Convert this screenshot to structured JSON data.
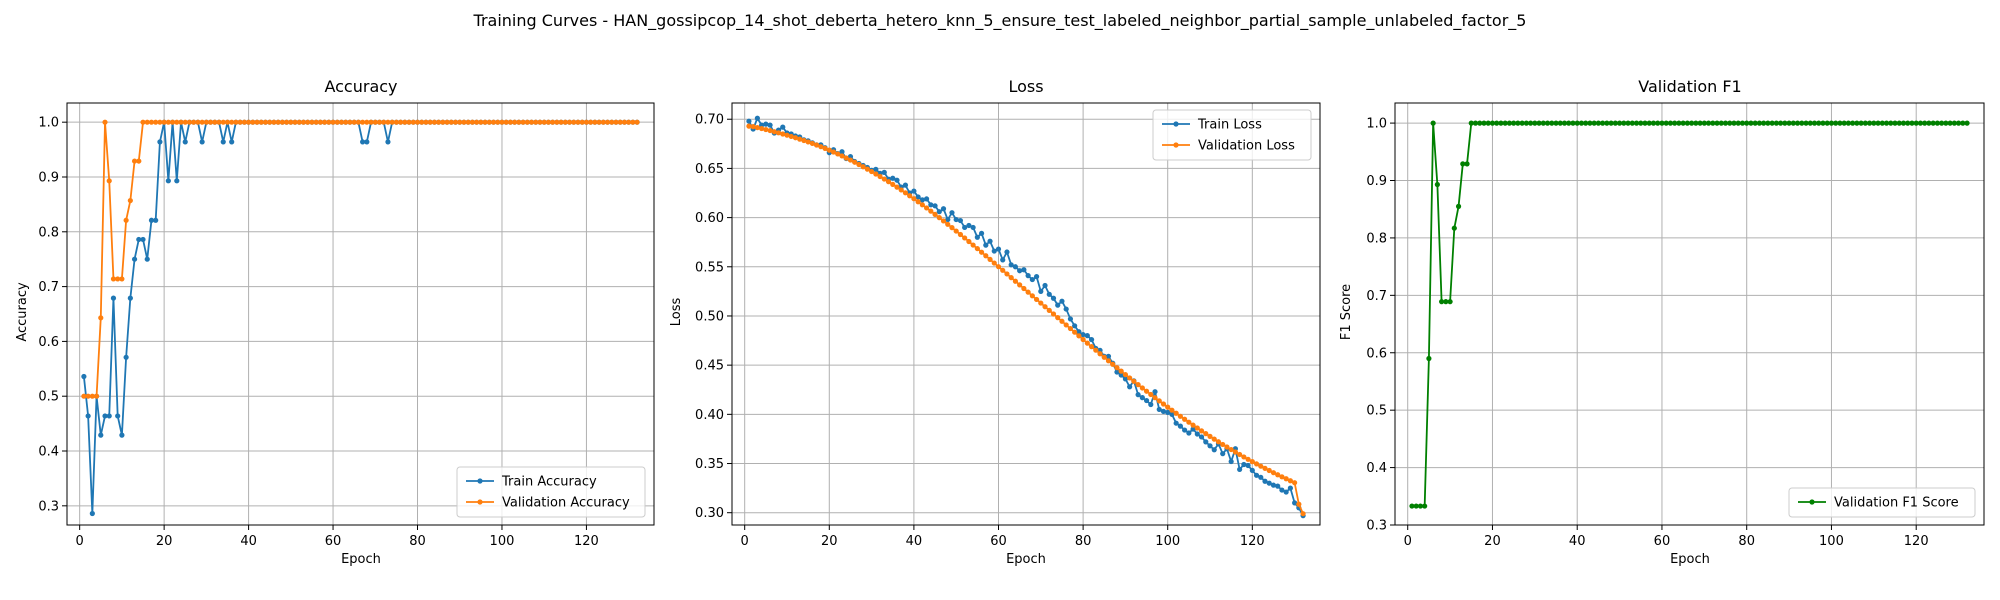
{
  "suptitle": "Training Curves - HAN_gossipcop_14_shot_deberta_hetero_knn_5_ensure_test_labeled_neighbor_partial_sample_unlabeled_factor_5",
  "colors": {
    "train": "#1f77b4",
    "validation": "#ff7f0e",
    "f1": "#008000",
    "grid": "#b0b0b0"
  },
  "chart_data": [
    {
      "type": "line",
      "title": "Accuracy",
      "xlabel": "Epoch",
      "ylabel": "Accuracy",
      "xlim": [
        -3,
        136
      ],
      "ylim": [
        0.265,
        1.035
      ],
      "xticks": [
        0,
        20,
        40,
        60,
        80,
        100,
        120
      ],
      "yticks": [
        0.3,
        0.4,
        0.5,
        0.6,
        0.7,
        0.8,
        0.9,
        1.0
      ],
      "ytick_labels": [
        "0.3",
        "0.4",
        "0.5",
        "0.6",
        "0.7",
        "0.8",
        "0.9",
        "1.0"
      ],
      "grid": true,
      "legend_position": "lower-right",
      "series": [
        {
          "name": "Train Accuracy",
          "color": "#1f77b4",
          "x_start": 1,
          "x_end": 132,
          "values": [
            0.536,
            0.464,
            0.286,
            0.5,
            0.429,
            0.464,
            0.464,
            0.679,
            0.464,
            0.429,
            0.571,
            0.679,
            0.75,
            0.786,
            0.786,
            0.75,
            0.821,
            0.821,
            0.964,
            1.0,
            0.893,
            1.0,
            0.893,
            1.0,
            0.964,
            1.0,
            1.0,
            1.0,
            0.964,
            1.0,
            1.0,
            1.0,
            1.0,
            0.964,
            1.0,
            0.964,
            1.0,
            1.0,
            1.0,
            1.0,
            1.0,
            1.0,
            1.0,
            1.0,
            1.0,
            1.0,
            1.0,
            1.0,
            1.0,
            1.0,
            1.0,
            1.0,
            1.0,
            1.0,
            1.0,
            1.0,
            1.0,
            1.0,
            1.0,
            1.0,
            1.0,
            1.0,
            1.0,
            1.0,
            1.0,
            1.0,
            0.964,
            0.964,
            1.0,
            1.0,
            1.0,
            1.0,
            0.964,
            1.0,
            1.0,
            1.0,
            1.0,
            1.0,
            1.0,
            1.0,
            1.0,
            1.0,
            1.0,
            1.0,
            1.0,
            1.0,
            1.0,
            1.0,
            1.0,
            1.0,
            1.0,
            1.0,
            1.0,
            1.0,
            1.0,
            1.0,
            1.0,
            1.0,
            1.0,
            1.0,
            1.0,
            1.0,
            1.0,
            1.0,
            1.0,
            1.0,
            1.0,
            1.0,
            1.0,
            1.0,
            1.0,
            1.0,
            1.0,
            1.0,
            1.0,
            1.0,
            1.0,
            1.0,
            1.0,
            1.0,
            1.0,
            1.0,
            1.0,
            1.0,
            1.0,
            1.0,
            1.0,
            1.0,
            1.0,
            1.0,
            1.0,
            1.0
          ]
        },
        {
          "name": "Validation Accuracy",
          "color": "#ff7f0e",
          "x_start": 1,
          "x_end": 132,
          "values": [
            0.5,
            0.5,
            0.5,
            0.5,
            0.643,
            1.0,
            0.893,
            0.714,
            0.714,
            0.714,
            0.821,
            0.857,
            0.929,
            0.929,
            1.0,
            1.0,
            1.0,
            1.0,
            1.0,
            1.0,
            1.0,
            1.0,
            1.0,
            1.0,
            1.0,
            1.0,
            1.0,
            1.0,
            1.0,
            1.0,
            1.0,
            1.0,
            1.0,
            1.0,
            1.0,
            1.0,
            1.0,
            1.0,
            1.0,
            1.0,
            1.0,
            1.0,
            1.0,
            1.0,
            1.0,
            1.0,
            1.0,
            1.0,
            1.0,
            1.0,
            1.0,
            1.0,
            1.0,
            1.0,
            1.0,
            1.0,
            1.0,
            1.0,
            1.0,
            1.0,
            1.0,
            1.0,
            1.0,
            1.0,
            1.0,
            1.0,
            1.0,
            1.0,
            1.0,
            1.0,
            1.0,
            1.0,
            1.0,
            1.0,
            1.0,
            1.0,
            1.0,
            1.0,
            1.0,
            1.0,
            1.0,
            1.0,
            1.0,
            1.0,
            1.0,
            1.0,
            1.0,
            1.0,
            1.0,
            1.0,
            1.0,
            1.0,
            1.0,
            1.0,
            1.0,
            1.0,
            1.0,
            1.0,
            1.0,
            1.0,
            1.0,
            1.0,
            1.0,
            1.0,
            1.0,
            1.0,
            1.0,
            1.0,
            1.0,
            1.0,
            1.0,
            1.0,
            1.0,
            1.0,
            1.0,
            1.0,
            1.0,
            1.0,
            1.0,
            1.0,
            1.0,
            1.0,
            1.0,
            1.0,
            1.0,
            1.0,
            1.0,
            1.0,
            1.0,
            1.0,
            1.0,
            1.0
          ]
        }
      ]
    },
    {
      "type": "line",
      "title": "Loss",
      "xlabel": "Epoch",
      "ylabel": "Loss",
      "xlim": [
        -3,
        136
      ],
      "ylim": [
        0.2875,
        0.7165
      ],
      "xticks": [
        0,
        20,
        40,
        60,
        80,
        100,
        120
      ],
      "yticks": [
        0.3,
        0.35,
        0.4,
        0.45,
        0.5,
        0.55,
        0.6,
        0.65,
        0.7
      ],
      "ytick_labels": [
        "0.30",
        "0.35",
        "0.40",
        "0.45",
        "0.50",
        "0.55",
        "0.60",
        "0.65",
        "0.70"
      ],
      "grid": true,
      "legend_position": "upper-right",
      "series": [
        {
          "name": "Train Loss",
          "color": "#1f77b4",
          "x_start": 1,
          "x_end": 132,
          "values": [
            0.698,
            0.69,
            0.701,
            0.694,
            0.695,
            0.694,
            0.686,
            0.689,
            0.692,
            0.686,
            0.685,
            0.683,
            0.682,
            0.679,
            0.678,
            0.676,
            0.674,
            0.674,
            0.671,
            0.666,
            0.669,
            0.665,
            0.667,
            0.66,
            0.662,
            0.657,
            0.655,
            0.653,
            0.651,
            0.648,
            0.649,
            0.645,
            0.646,
            0.639,
            0.64,
            0.638,
            0.631,
            0.633,
            0.625,
            0.627,
            0.621,
            0.618,
            0.619,
            0.613,
            0.612,
            0.606,
            0.609,
            0.598,
            0.605,
            0.598,
            0.597,
            0.59,
            0.592,
            0.59,
            0.58,
            0.584,
            0.572,
            0.576,
            0.566,
            0.568,
            0.557,
            0.565,
            0.552,
            0.55,
            0.546,
            0.547,
            0.541,
            0.537,
            0.54,
            0.525,
            0.531,
            0.522,
            0.518,
            0.511,
            0.515,
            0.507,
            0.497,
            0.49,
            0.484,
            0.481,
            0.48,
            0.476,
            0.467,
            0.465,
            0.459,
            0.459,
            0.452,
            0.443,
            0.44,
            0.436,
            0.428,
            0.434,
            0.42,
            0.417,
            0.414,
            0.41,
            0.423,
            0.405,
            0.403,
            0.402,
            0.4,
            0.391,
            0.388,
            0.384,
            0.381,
            0.385,
            0.38,
            0.377,
            0.372,
            0.368,
            0.364,
            0.37,
            0.36,
            0.365,
            0.352,
            0.365,
            0.344,
            0.349,
            0.348,
            0.343,
            0.338,
            0.336,
            0.332,
            0.33,
            0.328,
            0.327,
            0.323,
            0.321,
            0.325,
            0.31,
            0.305,
            0.297
          ]
        },
        {
          "name": "Validation Loss",
          "color": "#ff7f0e",
          "x_start": 1,
          "x_end": 132,
          "values": [
            0.693,
            0.6925,
            0.6915,
            0.6905,
            0.6895,
            0.6885,
            0.6873,
            0.6862,
            0.685,
            0.6838,
            0.6825,
            0.6812,
            0.6798,
            0.6784,
            0.6769,
            0.6754,
            0.6738,
            0.6721,
            0.6704,
            0.6686,
            0.6667,
            0.6647,
            0.6627,
            0.6606,
            0.6585,
            0.6563,
            0.654,
            0.6517,
            0.6493,
            0.6468,
            0.6443,
            0.6418,
            0.6392,
            0.6365,
            0.6338,
            0.631,
            0.6281,
            0.6252,
            0.6222,
            0.6192,
            0.6161,
            0.613,
            0.6098,
            0.6066,
            0.6033,
            0.6,
            0.5966,
            0.5932,
            0.5898,
            0.5863,
            0.5828,
            0.5793,
            0.5757,
            0.5721,
            0.5685,
            0.5648,
            0.5612,
            0.5575,
            0.5538,
            0.5501,
            0.5464,
            0.5427,
            0.539,
            0.5353,
            0.5316,
            0.5279,
            0.5242,
            0.5205,
            0.5168,
            0.5131,
            0.5094,
            0.5057,
            0.502,
            0.4983,
            0.4946,
            0.4909,
            0.4872,
            0.4835,
            0.4798,
            0.4761,
            0.4724,
            0.4688,
            0.4652,
            0.4616,
            0.458,
            0.4544,
            0.4509,
            0.4474,
            0.4439,
            0.4404,
            0.437,
            0.4336,
            0.4302,
            0.4268,
            0.4235,
            0.4202,
            0.4169,
            0.4137,
            0.4105,
            0.4073,
            0.4042,
            0.4011,
            0.398,
            0.395,
            0.392,
            0.389,
            0.3861,
            0.3832,
            0.3804,
            0.3776,
            0.3748,
            0.3721,
            0.3694,
            0.3668,
            0.3642,
            0.3617,
            0.3592,
            0.3567,
            0.3543,
            0.3519,
            0.3496,
            0.3473,
            0.3451,
            0.3429,
            0.3407,
            0.3386,
            0.3365,
            0.3345,
            0.3325,
            0.3305,
            0.3086,
            0.299
          ]
        }
      ]
    },
    {
      "type": "line",
      "title": "Validation F1",
      "xlabel": "Epoch",
      "ylabel": "F1 Score",
      "xlim": [
        -3,
        136
      ],
      "ylim": [
        0.3,
        1.035
      ],
      "xticks": [
        0,
        20,
        40,
        60,
        80,
        100,
        120
      ],
      "yticks": [
        0.3,
        0.4,
        0.5,
        0.6,
        0.7,
        0.8,
        0.9,
        1.0
      ],
      "ytick_labels": [
        "0.3",
        "0.4",
        "0.5",
        "0.6",
        "0.7",
        "0.8",
        "0.9",
        "1.0"
      ],
      "grid": true,
      "legend_position": "lower-right",
      "series": [
        {
          "name": "Validation F1 Score",
          "color": "#008000",
          "x_start": 1,
          "x_end": 132,
          "values": [
            0.333,
            0.333,
            0.333,
            0.333,
            0.59,
            1.0,
            0.893,
            0.689,
            0.689,
            0.689,
            0.817,
            0.855,
            0.929,
            0.929,
            1.0,
            1.0,
            1.0,
            1.0,
            1.0,
            1.0,
            1.0,
            1.0,
            1.0,
            1.0,
            1.0,
            1.0,
            1.0,
            1.0,
            1.0,
            1.0,
            1.0,
            1.0,
            1.0,
            1.0,
            1.0,
            1.0,
            1.0,
            1.0,
            1.0,
            1.0,
            1.0,
            1.0,
            1.0,
            1.0,
            1.0,
            1.0,
            1.0,
            1.0,
            1.0,
            1.0,
            1.0,
            1.0,
            1.0,
            1.0,
            1.0,
            1.0,
            1.0,
            1.0,
            1.0,
            1.0,
            1.0,
            1.0,
            1.0,
            1.0,
            1.0,
            1.0,
            1.0,
            1.0,
            1.0,
            1.0,
            1.0,
            1.0,
            1.0,
            1.0,
            1.0,
            1.0,
            1.0,
            1.0,
            1.0,
            1.0,
            1.0,
            1.0,
            1.0,
            1.0,
            1.0,
            1.0,
            1.0,
            1.0,
            1.0,
            1.0,
            1.0,
            1.0,
            1.0,
            1.0,
            1.0,
            1.0,
            1.0,
            1.0,
            1.0,
            1.0,
            1.0,
            1.0,
            1.0,
            1.0,
            1.0,
            1.0,
            1.0,
            1.0,
            1.0,
            1.0,
            1.0,
            1.0,
            1.0,
            1.0,
            1.0,
            1.0,
            1.0,
            1.0,
            1.0,
            1.0,
            1.0,
            1.0,
            1.0,
            1.0,
            1.0,
            1.0,
            1.0,
            1.0,
            1.0,
            1.0,
            1.0,
            1.0
          ]
        }
      ]
    }
  ]
}
